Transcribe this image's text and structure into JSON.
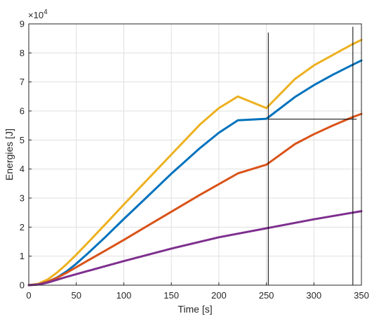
{
  "chart_data": {
    "type": "line",
    "xlabel": "Time [s]",
    "ylabel": "Energies [J]",
    "xlim": [
      0,
      350
    ],
    "ylim": [
      0,
      90000
    ],
    "y_multiplier_label": "×10",
    "y_multiplier_exponent": "4",
    "grid": true,
    "box": true,
    "x_ticks": [
      {
        "value": 0,
        "label": "0"
      },
      {
        "value": 50,
        "label": "50"
      },
      {
        "value": 100,
        "label": "100"
      },
      {
        "value": 150,
        "label": "150"
      },
      {
        "value": 200,
        "label": "200"
      },
      {
        "value": 250,
        "label": "250"
      },
      {
        "value": 300,
        "label": "300"
      },
      {
        "value": 350,
        "label": "350"
      }
    ],
    "y_ticks": [
      {
        "value": 0,
        "label": "0"
      },
      {
        "value": 10000,
        "label": "1"
      },
      {
        "value": 20000,
        "label": "2"
      },
      {
        "value": 30000,
        "label": "3"
      },
      {
        "value": 40000,
        "label": "4"
      },
      {
        "value": 50000,
        "label": "5"
      },
      {
        "value": 60000,
        "label": "6"
      },
      {
        "value": 70000,
        "label": "7"
      },
      {
        "value": 80000,
        "label": "8"
      },
      {
        "value": 90000,
        "label": "9"
      }
    ],
    "series": [
      {
        "color": "#EDB120",
        "x": [
          0,
          10,
          20,
          30,
          40,
          50,
          60,
          80,
          100,
          120,
          150,
          180,
          200,
          220,
          250,
          280,
          300,
          320,
          340,
          350
        ],
        "y": [
          0,
          500,
          2000,
          4400,
          7300,
          10500,
          13900,
          20800,
          27800,
          34700,
          45000,
          55300,
          61000,
          65000,
          61000,
          71000,
          75700,
          79300,
          82900,
          84500
        ]
      },
      {
        "color": "#0072BD",
        "x": [
          0,
          10,
          20,
          30,
          40,
          50,
          60,
          80,
          100,
          120,
          150,
          180,
          200,
          220,
          250,
          280,
          300,
          320,
          340,
          350
        ],
        "y": [
          0,
          300,
          1200,
          2700,
          4800,
          7400,
          10300,
          16400,
          22800,
          29000,
          38400,
          47200,
          52500,
          56800,
          57300,
          64800,
          68900,
          72500,
          75800,
          77400
        ]
      },
      {
        "color": "#D95319",
        "x": [
          0,
          10,
          20,
          30,
          40,
          50,
          60,
          80,
          100,
          120,
          150,
          180,
          200,
          220,
          250,
          280,
          300,
          320,
          340,
          350
        ],
        "y": [
          0,
          300,
          1200,
          2600,
          4300,
          6200,
          8100,
          11800,
          15600,
          19500,
          25300,
          31100,
          34800,
          38500,
          41500,
          48600,
          52000,
          55000,
          57800,
          59000
        ]
      },
      {
        "color": "#7E2F8E",
        "x": [
          0,
          10,
          20,
          30,
          40,
          50,
          100,
          150,
          200,
          250,
          300,
          350
        ],
        "y": [
          0,
          200,
          900,
          1900,
          2900,
          3800,
          8300,
          12600,
          16500,
          19600,
          22700,
          25500
        ]
      }
    ],
    "annotations": [
      {
        "type": "vline",
        "x": 252,
        "y_from": 0,
        "y_to": 87000
      },
      {
        "type": "vline",
        "x": 341,
        "y_from": 0,
        "y_to": 89000
      },
      {
        "type": "hline",
        "y": 57200,
        "x_from": 252,
        "x_to": 345
      }
    ]
  }
}
